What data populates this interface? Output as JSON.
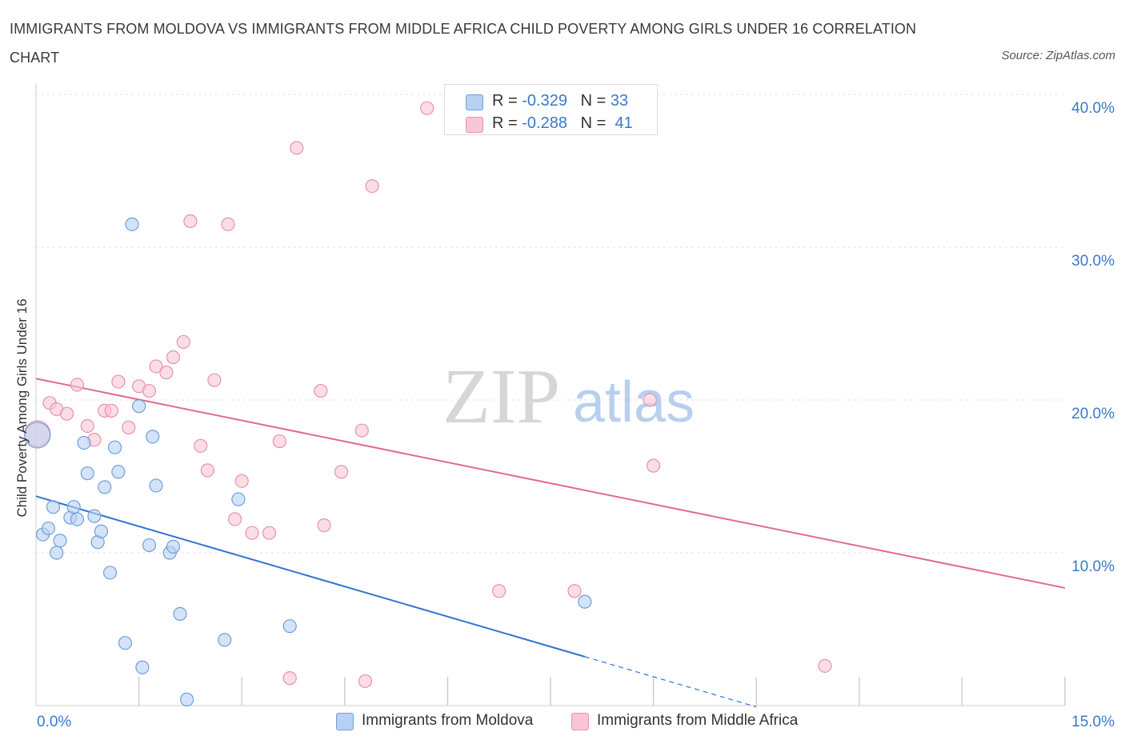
{
  "title": "IMMIGRANTS FROM MOLDOVA VS IMMIGRANTS FROM MIDDLE AFRICA CHILD POVERTY AMONG GIRLS UNDER 16 CORRELATION CHART",
  "source": "Source: ZipAtlas.com",
  "watermark": {
    "zip": "ZIP",
    "atlas": "atlas"
  },
  "legend": {
    "rows": [
      {
        "r_label": "R = ",
        "r_value": "-0.329",
        "n_label": "N = ",
        "n_value": "33"
      },
      {
        "r_label": "R = ",
        "r_value": "-0.288",
        "n_label": "N = ",
        "n_value": "41"
      }
    ]
  },
  "bottom_legend": [
    "Immigrants from Moldova",
    "Immigrants from Middle Africa"
  ],
  "colors": {
    "moldova_fill": "#b8d0f2",
    "moldova_stroke": "#6f9fdc",
    "moldova_line": "#2f74cf",
    "africa_fill": "#f8c6d4",
    "africa_stroke": "#e892ad",
    "africa_line": "#e06a92",
    "tick": "#3c78c8",
    "grid": "#e2e2e2"
  },
  "chart_data": {
    "type": "scatter",
    "title": "IMMIGRANTS FROM MOLDOVA VS IMMIGRANTS FROM MIDDLE AFRICA CHILD POVERTY AMONG GIRLS UNDER 16 CORRELATION CHART",
    "xlabel": "",
    "ylabel": "Child Poverty Among Girls Under 16",
    "xlim": [
      0,
      15
    ],
    "ylim": [
      0,
      40
    ],
    "x_tick_labels": [
      "0.0%",
      "15.0%"
    ],
    "y_ticks": [
      10,
      20,
      30,
      40
    ],
    "y_tick_labels": [
      "10.0%",
      "20.0%",
      "30.0%",
      "40.0%"
    ],
    "grid": true,
    "series": [
      {
        "name": "Immigrants from Moldova",
        "R": -0.329,
        "N": 33,
        "trend": {
          "x0": 0,
          "y0": 13.7,
          "x1": 8.0,
          "y1": 3.2,
          "dashed_to_x": 10.5
        },
        "points": [
          [
            0.1,
            11.2
          ],
          [
            0.18,
            11.6
          ],
          [
            0.25,
            13.0
          ],
          [
            0.3,
            10.0
          ],
          [
            0.35,
            10.8
          ],
          [
            0.5,
            12.3
          ],
          [
            0.55,
            13.0
          ],
          [
            0.6,
            12.2
          ],
          [
            0.7,
            17.2
          ],
          [
            0.75,
            15.2
          ],
          [
            0.85,
            12.4
          ],
          [
            0.9,
            10.7
          ],
          [
            0.95,
            11.4
          ],
          [
            1.0,
            14.3
          ],
          [
            1.08,
            8.7
          ],
          [
            1.15,
            16.9
          ],
          [
            1.2,
            15.3
          ],
          [
            1.3,
            4.1
          ],
          [
            1.4,
            31.5
          ],
          [
            1.5,
            19.6
          ],
          [
            1.55,
            2.5
          ],
          [
            1.65,
            10.5
          ],
          [
            1.7,
            17.6
          ],
          [
            1.75,
            14.4
          ],
          [
            1.95,
            10.0
          ],
          [
            2.0,
            10.4
          ],
          [
            2.1,
            6.0
          ],
          [
            2.2,
            0.4
          ],
          [
            2.75,
            4.3
          ],
          [
            2.95,
            13.5
          ],
          [
            3.7,
            5.2
          ],
          [
            8.0,
            6.8
          ],
          [
            0.02,
            17.7
          ]
        ]
      },
      {
        "name": "Immigrants from Middle Africa",
        "R": -0.288,
        "N": 41,
        "trend": {
          "x0": 0,
          "y0": 21.4,
          "x1": 15.0,
          "y1": 7.7
        },
        "points": [
          [
            0.02,
            17.8
          ],
          [
            0.2,
            19.8
          ],
          [
            0.3,
            19.4
          ],
          [
            0.45,
            19.1
          ],
          [
            0.6,
            21.0
          ],
          [
            0.75,
            18.3
          ],
          [
            0.85,
            17.4
          ],
          [
            1.0,
            19.3
          ],
          [
            1.1,
            19.3
          ],
          [
            1.2,
            21.2
          ],
          [
            1.35,
            18.2
          ],
          [
            1.5,
            20.9
          ],
          [
            1.65,
            20.6
          ],
          [
            1.75,
            22.2
          ],
          [
            1.9,
            21.8
          ],
          [
            2.0,
            22.8
          ],
          [
            2.15,
            23.8
          ],
          [
            2.25,
            31.7
          ],
          [
            2.4,
            17.0
          ],
          [
            2.5,
            15.4
          ],
          [
            2.6,
            21.3
          ],
          [
            2.8,
            31.5
          ],
          [
            2.9,
            12.2
          ],
          [
            3.0,
            14.7
          ],
          [
            3.15,
            11.3
          ],
          [
            3.4,
            11.3
          ],
          [
            3.55,
            17.3
          ],
          [
            3.7,
            1.8
          ],
          [
            3.8,
            36.5
          ],
          [
            4.15,
            20.6
          ],
          [
            4.2,
            11.8
          ],
          [
            4.45,
            15.3
          ],
          [
            4.75,
            18.0
          ],
          [
            4.8,
            1.6
          ],
          [
            4.9,
            34.0
          ],
          [
            5.7,
            39.1
          ],
          [
            6.75,
            7.5
          ],
          [
            7.85,
            7.5
          ],
          [
            8.95,
            20.0
          ],
          [
            9.0,
            15.7
          ],
          [
            11.5,
            2.6
          ]
        ]
      }
    ]
  }
}
